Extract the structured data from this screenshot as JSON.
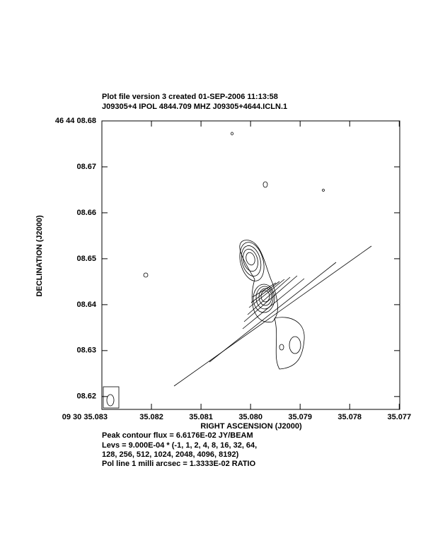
{
  "chart_data": {
    "type": "contour",
    "title": "Plot file version 3  created 01-SEP-2006 11:13:58",
    "subtitle": "J09305+4  IPOL  4844.709 MHZ  J09305+4644.ICLN.1",
    "x_label": "RIGHT ASCENSION (J2000)",
    "y_label": "DECLINATION (J2000)",
    "xlim": [
      35.083,
      35.07699
    ],
    "ylim": [
      8.6172,
      8.68
    ],
    "xticks": [
      {
        "value": 35.083,
        "label": "09 30 35.083"
      },
      35.082,
      35.081,
      {
        "value": 35.08,
        "label": "35.080"
      },
      35.079,
      35.078,
      35.077
    ],
    "yticks": [
      {
        "value": 8.68,
        "label": "46 44 08.68"
      },
      {
        "value": 8.67,
        "label": "08.67"
      },
      {
        "value": 8.66,
        "label": "08.66"
      },
      {
        "value": 8.65,
        "label": "08.65"
      },
      {
        "value": 8.64,
        "label": "08.64"
      },
      {
        "value": 8.63,
        "label": "08.63"
      },
      {
        "value": 8.62,
        "label": "08.62"
      }
    ],
    "notes": [
      "Peak contour flux =  6.6176E-02 JY/BEAM",
      "Levs = 9.000E-04 * (-1, 1, 2, 4, 8, 16, 32, 64,",
      "128, 256, 512, 1024, 2048, 4096, 8192)",
      "Pol line 1 milli arcsec =  1.3333E-02 RATIO"
    ]
  }
}
